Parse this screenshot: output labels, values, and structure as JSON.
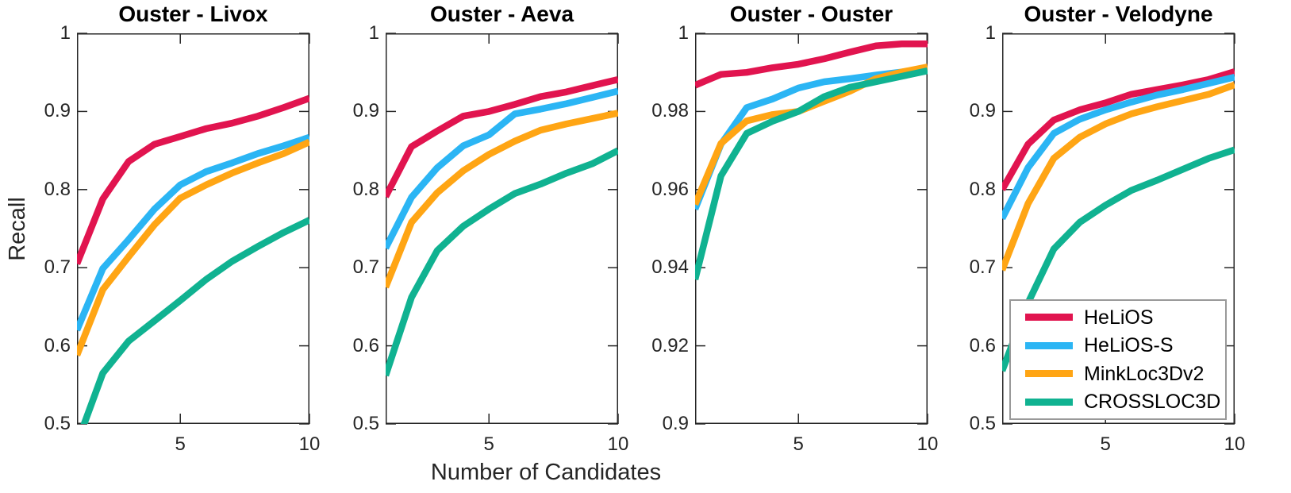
{
  "figure": {
    "xlabel": "Number of Candidates",
    "ylabel": "Recall",
    "background": "#ffffff",
    "axis_color": "#262626",
    "legend_border_color": "#999999"
  },
  "legend": {
    "position": "inside-bottom-right-of-fourth-panel",
    "entries": [
      {
        "label": "HeLiOS",
        "color": "#e1144f"
      },
      {
        "label": "HeLiOS-S",
        "color": "#2bb5f4"
      },
      {
        "label": "MinkLoc3Dv2",
        "color": "#ffa514"
      },
      {
        "label": "CROSSLOC3D",
        "color": "#10b291"
      }
    ]
  },
  "chart_data": [
    {
      "type": "line",
      "title": "Ouster - Livox",
      "x": [
        1,
        2,
        3,
        4,
        5,
        6,
        7,
        8,
        9,
        10
      ],
      "xlim": [
        1,
        10
      ],
      "xticks": [
        5,
        10
      ],
      "xtick_labels": [
        "5",
        "10"
      ],
      "ylim": [
        0.5,
        1
      ],
      "yticks": [
        0.5,
        0.6,
        0.7,
        0.8,
        0.9,
        1
      ],
      "ytick_labels": [
        "0.5",
        "0.6",
        "0.7",
        "0.8",
        "0.9",
        "1"
      ],
      "series": [
        {
          "name": "HeLiOS",
          "values": [
            0.705,
            0.788,
            0.836,
            0.858,
            0.868,
            0.878,
            0.885,
            0.894,
            0.905,
            0.917
          ]
        },
        {
          "name": "HeLiOS-S",
          "values": [
            0.62,
            0.699,
            0.736,
            0.775,
            0.806,
            0.823,
            0.834,
            0.846,
            0.856,
            0.867
          ]
        },
        {
          "name": "MinkLoc3Dv2",
          "values": [
            0.588,
            0.672,
            0.714,
            0.755,
            0.789,
            0.806,
            0.821,
            0.834,
            0.846,
            0.861
          ]
        },
        {
          "name": "CROSSLOC3D",
          "values": [
            0.475,
            0.565,
            0.606,
            0.632,
            0.658,
            0.685,
            0.708,
            0.727,
            0.745,
            0.761
          ]
        }
      ]
    },
    {
      "type": "line",
      "title": "Ouster - Aeva",
      "x": [
        1,
        2,
        3,
        4,
        5,
        6,
        7,
        8,
        9,
        10
      ],
      "xlim": [
        1,
        10
      ],
      "xticks": [
        5,
        10
      ],
      "xtick_labels": [
        "5",
        "10"
      ],
      "ylim": [
        0.5,
        1
      ],
      "yticks": [
        0.5,
        0.6,
        0.7,
        0.8,
        0.9,
        1
      ],
      "ytick_labels": [
        "0.5",
        "0.6",
        "0.7",
        "0.8",
        "0.9",
        "1"
      ],
      "series": [
        {
          "name": "HeLiOS",
          "values": [
            0.791,
            0.855,
            0.875,
            0.894,
            0.9,
            0.909,
            0.919,
            0.925,
            0.933,
            0.941
          ]
        },
        {
          "name": "HeLiOS-S",
          "values": [
            0.725,
            0.79,
            0.828,
            0.856,
            0.87,
            0.897,
            0.903,
            0.91,
            0.918,
            0.926
          ]
        },
        {
          "name": "MinkLoc3Dv2",
          "values": [
            0.675,
            0.758,
            0.796,
            0.824,
            0.845,
            0.862,
            0.876,
            0.884,
            0.891,
            0.898
          ]
        },
        {
          "name": "CROSSLOC3D",
          "values": [
            0.562,
            0.662,
            0.722,
            0.753,
            0.775,
            0.795,
            0.807,
            0.821,
            0.833,
            0.85
          ]
        }
      ]
    },
    {
      "type": "line",
      "title": "Ouster - Ouster",
      "x": [
        1,
        2,
        3,
        4,
        5,
        6,
        7,
        8,
        9,
        10
      ],
      "xlim": [
        1,
        10
      ],
      "xticks": [
        5,
        10
      ],
      "xtick_labels": [
        "5",
        "10"
      ],
      "ylim": [
        0.9,
        1
      ],
      "yticks": [
        0.9,
        0.92,
        0.94,
        0.96,
        0.98,
        1
      ],
      "ytick_labels": [
        "0.9",
        "0.92",
        "0.94",
        "0.96",
        "0.98",
        "1"
      ],
      "series": [
        {
          "name": "HeLiOS",
          "values": [
            0.9867,
            0.9895,
            0.99,
            0.9912,
            0.9921,
            0.9935,
            0.9952,
            0.9968,
            0.9973,
            0.9973
          ]
        },
        {
          "name": "HeLiOS-S",
          "values": [
            0.955,
            0.9716,
            0.981,
            0.9832,
            0.986,
            0.9876,
            0.9884,
            0.9893,
            0.9901,
            0.9909
          ]
        },
        {
          "name": "MinkLoc3Dv2",
          "values": [
            0.9562,
            0.9718,
            0.9776,
            0.9792,
            0.98,
            0.9826,
            0.9852,
            0.9884,
            0.9901,
            0.9914
          ]
        },
        {
          "name": "CROSSLOC3D",
          "values": [
            0.937,
            0.9635,
            0.9744,
            0.9775,
            0.98,
            0.9838,
            0.9862,
            0.9876,
            0.989,
            0.9904
          ]
        }
      ]
    },
    {
      "type": "line",
      "title": "Ouster - Velodyne",
      "x": [
        1,
        2,
        3,
        4,
        5,
        6,
        7,
        8,
        9,
        10
      ],
      "xlim": [
        1,
        10
      ],
      "xticks": [
        5,
        10
      ],
      "xtick_labels": [
        "5",
        "10"
      ],
      "ylim": [
        0.5,
        1
      ],
      "yticks": [
        0.5,
        0.6,
        0.7,
        0.8,
        0.9,
        1
      ],
      "ytick_labels": [
        "0.5",
        "0.6",
        "0.7",
        "0.8",
        "0.9",
        "1"
      ],
      "series": [
        {
          "name": "HeLiOS",
          "values": [
            0.8,
            0.858,
            0.889,
            0.902,
            0.911,
            0.922,
            0.928,
            0.934,
            0.941,
            0.951
          ]
        },
        {
          "name": "HeLiOS-S",
          "values": [
            0.763,
            0.828,
            0.872,
            0.89,
            0.902,
            0.912,
            0.921,
            0.928,
            0.936,
            0.944
          ]
        },
        {
          "name": "MinkLoc3Dv2",
          "values": [
            0.697,
            0.782,
            0.84,
            0.867,
            0.884,
            0.897,
            0.906,
            0.914,
            0.922,
            0.934
          ]
        },
        {
          "name": "CROSSLOC3D",
          "values": [
            0.568,
            0.655,
            0.724,
            0.758,
            0.78,
            0.799,
            0.812,
            0.826,
            0.84,
            0.851
          ]
        }
      ]
    }
  ]
}
